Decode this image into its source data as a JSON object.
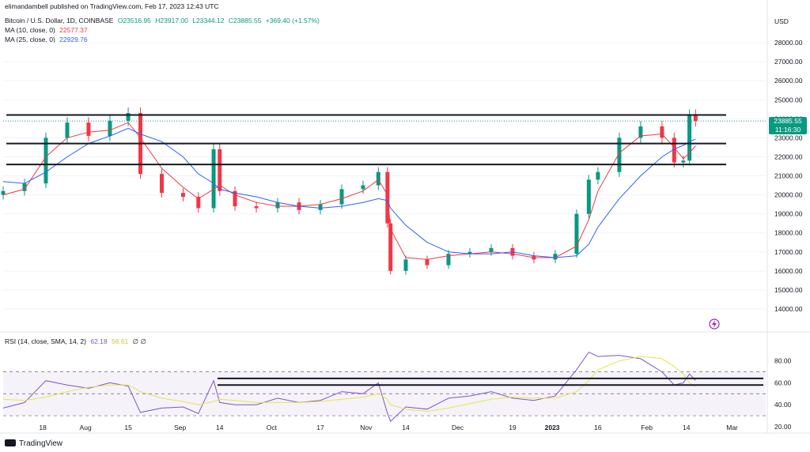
{
  "header": {
    "published": "elimandambell published on TradingView.com, Feb 17, 2023 12:43 UTC",
    "symbol": "Bitcoin / U.S. Dollar, 1D, COINBASE",
    "open": "O23516.95",
    "high": "H23917.00",
    "low": "L23344.12",
    "close": "C23885.55",
    "change": "+369.40 (+1.57%)",
    "ma10_label": "MA (10, close, 0)",
    "ma10_value": "22577.37",
    "ma25_label": "MA (25, close, 0)",
    "ma25_value": "22929.76",
    "rsi_label": "RSI (14, close, SMA, 14, 2)",
    "rsi_value": "62.18",
    "rsi_ma_value": "56.61",
    "rsi_extra": "∅ ∅"
  },
  "price_axis": {
    "currency": "USD",
    "tag_price": "23885.55",
    "tag_countdown": "11:16:30"
  },
  "footer": {
    "brand": "TradingView"
  },
  "colors": {
    "up": "#089981",
    "down": "#f23645",
    "ma10": "#f23645",
    "ma25": "#2962ff",
    "rsi": "#7e57c2",
    "rsi_ma": "#e6e64a",
    "hline": "#131722"
  },
  "chart_data": [
    {
      "type": "candlestick",
      "title": "Bitcoin / U.S. Dollar, 1D, COINBASE",
      "ylim": [
        13000,
        29500
      ],
      "yticks": [
        14000,
        15000,
        16000,
        17000,
        18000,
        19000,
        20000,
        21000,
        22000,
        23000,
        24000,
        25000,
        26000,
        27000,
        28000
      ],
      "ytick_labels": [
        "14000.00",
        "15000.00",
        "16000.00",
        "17000.00",
        "18000.00",
        "19000.00",
        "20000.00",
        "21000.00",
        "22000.00",
        "23000.00",
        "24000.00",
        "25000.00",
        "26000.00",
        "27000.00",
        "28000.00"
      ],
      "xtick_labels": [
        "18",
        "Aug",
        "15",
        "Sep",
        "14",
        "Oct",
        "17",
        "Nov",
        "14",
        "Dec",
        "19",
        "2023",
        "16",
        "Feb",
        "14",
        "Mar"
      ],
      "xtick_dates": [
        "2022-07-18",
        "2022-08-01",
        "2022-08-15",
        "2022-09-01",
        "2022-09-14",
        "2022-10-01",
        "2022-10-17",
        "2022-11-01",
        "2022-11-14",
        "2022-12-01",
        "2022-12-19",
        "2023-01-01",
        "2023-01-16",
        "2023-02-01",
        "2023-02-14",
        "2023-03-01"
      ],
      "dates": [
        "2022-07-05",
        "2022-07-12",
        "2022-07-19",
        "2022-07-26",
        "2022-08-02",
        "2022-08-09",
        "2022-08-15",
        "2022-08-19",
        "2022-08-26",
        "2022-09-02",
        "2022-09-07",
        "2022-09-12",
        "2022-09-14",
        "2022-09-19",
        "2022-09-26",
        "2022-10-03",
        "2022-10-10",
        "2022-10-17",
        "2022-10-24",
        "2022-10-31",
        "2022-11-05",
        "2022-11-08",
        "2022-11-09",
        "2022-11-14",
        "2022-11-21",
        "2022-11-28",
        "2022-12-05",
        "2022-12-12",
        "2022-12-19",
        "2022-12-26",
        "2023-01-02",
        "2023-01-09",
        "2023-01-13",
        "2023-01-16",
        "2023-01-23",
        "2023-01-30",
        "2023-02-06",
        "2023-02-10",
        "2023-02-13",
        "2023-02-15",
        "2023-02-17"
      ],
      "close": [
        20200,
        20600,
        23000,
        23800,
        23100,
        23900,
        24300,
        21100,
        20100,
        19900,
        19300,
        22400,
        20200,
        19400,
        19300,
        19600,
        19200,
        19500,
        20300,
        20500,
        21200,
        18500,
        16000,
        16600,
        16300,
        16900,
        17000,
        17200,
        16800,
        16600,
        16900,
        19000,
        20800,
        21200,
        23000,
        23600,
        23000,
        21700,
        21800,
        24200,
        23885
      ],
      "series": [
        {
          "name": "MA (10, close, 0)",
          "values": [
            20000,
            20300,
            22000,
            23000,
            23300,
            23400,
            23800,
            23000,
            21400,
            20400,
            19800,
            20300,
            20500,
            20000,
            19600,
            19400,
            19400,
            19500,
            19800,
            20200,
            20800,
            20000,
            18200,
            16700,
            16600,
            16800,
            16900,
            17000,
            16900,
            16700,
            16700,
            17300,
            18700,
            20200,
            22200,
            23100,
            23200,
            22500,
            21900,
            22200,
            22577
          ]
        },
        {
          "name": "MA (25, close, 0)",
          "values": [
            20700,
            20600,
            21200,
            22000,
            22700,
            23100,
            23500,
            23200,
            22800,
            22000,
            21100,
            20600,
            20300,
            20100,
            19900,
            19600,
            19400,
            19300,
            19400,
            19600,
            19800,
            19700,
            19300,
            18400,
            17500,
            17000,
            16900,
            16900,
            17000,
            16800,
            16700,
            16800,
            17400,
            18300,
            19800,
            21000,
            22000,
            22400,
            22600,
            22800,
            22930
          ]
        }
      ],
      "horizontal_levels": [
        24200,
        22700,
        21600
      ]
    },
    {
      "type": "line",
      "title": "RSI (14, close, SMA, 14, 2)",
      "ylim": [
        20,
        92
      ],
      "yticks": [
        20,
        40,
        60,
        80
      ],
      "ytick_labels": [
        "20.00",
        "40.00",
        "60.00",
        "80.00"
      ],
      "bands": [
        30,
        50,
        70
      ],
      "dates": [
        "2022-07-05",
        "2022-07-12",
        "2022-07-19",
        "2022-07-26",
        "2022-08-02",
        "2022-08-09",
        "2022-08-15",
        "2022-08-19",
        "2022-08-26",
        "2022-09-02",
        "2022-09-07",
        "2022-09-12",
        "2022-09-14",
        "2022-09-19",
        "2022-09-26",
        "2022-10-03",
        "2022-10-10",
        "2022-10-17",
        "2022-10-24",
        "2022-10-31",
        "2022-11-05",
        "2022-11-08",
        "2022-11-09",
        "2022-11-14",
        "2022-11-21",
        "2022-11-28",
        "2022-12-05",
        "2022-12-12",
        "2022-12-19",
        "2022-12-26",
        "2023-01-02",
        "2023-01-09",
        "2023-01-13",
        "2023-01-16",
        "2023-01-23",
        "2023-01-30",
        "2023-02-06",
        "2023-02-10",
        "2023-02-13",
        "2023-02-15",
        "2023-02-17"
      ],
      "series": [
        {
          "name": "RSI",
          "values": [
            37,
            42,
            62,
            58,
            55,
            60,
            57,
            33,
            37,
            38,
            32,
            62,
            42,
            40,
            40,
            46,
            42,
            44,
            52,
            50,
            60,
            32,
            25,
            38,
            36,
            46,
            48,
            52,
            46,
            44,
            48,
            72,
            88,
            84,
            85,
            82,
            70,
            58,
            60,
            68,
            62.18
          ]
        },
        {
          "name": "RSI-based MA",
          "values": [
            45,
            44,
            47,
            52,
            56,
            58,
            58,
            52,
            46,
            43,
            40,
            43,
            45,
            44,
            42,
            42,
            42,
            43,
            45,
            47,
            50,
            45,
            40,
            36,
            34,
            37,
            41,
            45,
            47,
            46,
            46,
            52,
            62,
            72,
            80,
            84,
            82,
            75,
            68,
            60,
            56.61
          ]
        }
      ],
      "horizontal_levels": [
        64,
        58
      ]
    }
  ]
}
